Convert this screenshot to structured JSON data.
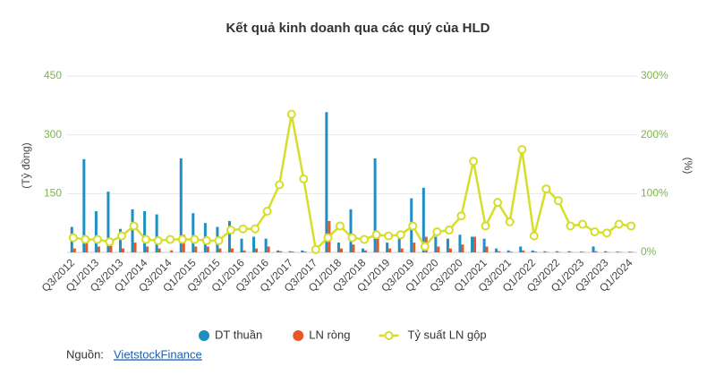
{
  "chart_data": {
    "type": "bar-line",
    "title": "Kết quả kinh doanh qua các quý của HLD",
    "y_label": "(Tỷ đồng)",
    "y2_label": "(%)",
    "categories": [
      "Q3/2012",
      null,
      "Q1/2013",
      null,
      "Q3/2013",
      null,
      "Q1/2014",
      null,
      "Q3/2014",
      null,
      "Q1/2015",
      null,
      "Q3/2015",
      null,
      "Q1/2016",
      null,
      "Q3/2016",
      null,
      "Q1/2017",
      null,
      "Q3/2017",
      null,
      "Q1/2018",
      null,
      "Q3/2018",
      null,
      "Q1/2019",
      null,
      "Q3/2019",
      null,
      "Q1/2020",
      null,
      "Q3/2020",
      null,
      "Q1/2021",
      null,
      "Q3/2021",
      null,
      "Q1/2022",
      null,
      "Q3/2022",
      null,
      "Q1/2023",
      null,
      "Q3/2023",
      null,
      "Q1/2024"
    ],
    "series": [
      {
        "name": "DT thuần",
        "color": "#1f8fc1",
        "values": [
          65,
          238,
          105,
          155,
          60,
          110,
          105,
          97,
          0,
          240,
          100,
          75,
          65,
          80,
          35,
          40,
          35,
          5,
          3,
          5,
          0,
          358,
          25,
          110,
          10,
          240,
          25,
          35,
          138,
          165,
          40,
          35,
          45,
          40,
          35,
          10,
          5,
          15,
          5,
          3,
          3,
          3,
          2,
          15,
          3,
          2,
          2
        ]
      },
      {
        "name": "LN ròng",
        "color": "#e8572a",
        "values": [
          10,
          30,
          15,
          20,
          10,
          25,
          15,
          10,
          5,
          45,
          15,
          15,
          10,
          10,
          5,
          10,
          15,
          3,
          2,
          2,
          0,
          80,
          10,
          20,
          5,
          40,
          10,
          10,
          25,
          40,
          15,
          10,
          20,
          40,
          15,
          3,
          2,
          5,
          2,
          1,
          1,
          1,
          1,
          3,
          1,
          1,
          1
        ]
      },
      {
        "name": "Tỷ suất LN gộp",
        "color": "#d6de2a",
        "axis": "y2",
        "values": [
          25,
          22,
          22,
          18,
          28,
          45,
          22,
          20,
          22,
          22,
          22,
          20,
          20,
          38,
          40,
          40,
          70,
          115,
          235,
          125,
          5,
          25,
          45,
          25,
          22,
          30,
          28,
          30,
          45,
          10,
          35,
          38,
          62,
          155,
          45,
          85,
          52,
          175,
          28,
          108,
          88,
          45,
          48,
          35,
          33,
          48,
          45
        ]
      }
    ],
    "ylim": [
      0,
      450
    ],
    "yticks": [
      150,
      300,
      450
    ],
    "y2lim": [
      0,
      300
    ],
    "y2ticks": [
      {
        "value": 0,
        "label": "0%"
      },
      {
        "value": 100,
        "label": "100%"
      },
      {
        "value": 200,
        "label": "200%"
      },
      {
        "value": 300,
        "label": "300%"
      }
    ],
    "grid": true,
    "source_label": "Nguồn:",
    "source_link": "VietstockFinance"
  }
}
